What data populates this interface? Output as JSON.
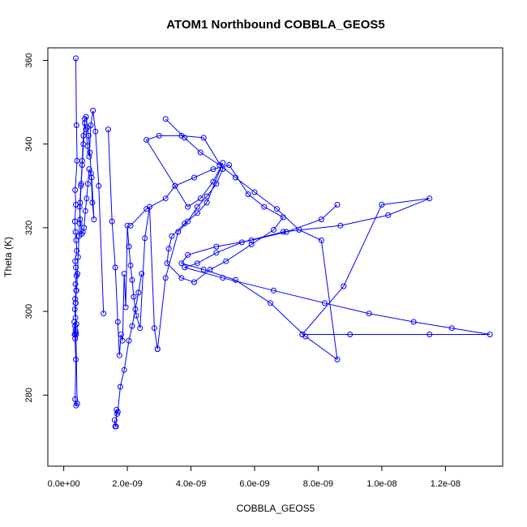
{
  "chart_data": {
    "type": "line",
    "title": "ATOM1 Northbound COBBLA_GEOS5",
    "xlabel": "COBBLA_GEOS5",
    "ylabel": "Theta (K)",
    "xlim": [
      -5e-10,
      1.38e-08
    ],
    "ylim": [
      263,
      363
    ],
    "x_ticks": [
      0,
      2e-09,
      4e-09,
      6e-09,
      8e-09,
      1e-08,
      1.2e-08
    ],
    "x_tick_labels": [
      "0.0e+00",
      "2.0e-09",
      "4.0e-09",
      "6.0e-09",
      "8.0e-09",
      "1.0e-08",
      "1.2e-08"
    ],
    "y_ticks": [
      280,
      300,
      320,
      340,
      360
    ],
    "y_tick_labels": [
      "280",
      "300",
      "320",
      "340",
      "360"
    ],
    "markers": "open-circle",
    "color": "#0000ff",
    "grid": false,
    "series": [
      {
        "x": [
          3.8e-10,
          4e-10,
          4.2e-10,
          3.6e-10,
          3.8e-10,
          3.5e-10,
          3.7e-10,
          3.9e-10,
          4.1e-10,
          3.6e-10,
          3.8e-10,
          4e-10,
          3.7e-10,
          3.9e-10,
          3.6e-10,
          3.8e-10,
          3.5e-10,
          3.7e-10,
          4e-10,
          3.6e-10,
          3.8e-10,
          3.4e-10,
          3.7e-10,
          3.9e-10,
          3.6e-10,
          3.3e-10,
          3.5e-10,
          3.8e-10,
          3.6e-10,
          3.9e-10,
          4.2e-10,
          3.7e-10,
          4e-10,
          4.3e-10,
          4.5e-10,
          4.8e-10,
          5e-10,
          5.2e-10,
          5.5e-10,
          5.8e-10,
          6.2e-10,
          6.6e-10,
          7e-10,
          7.4e-10,
          7.8e-10,
          8.2e-10,
          8.6e-10,
          9e-10,
          9.5e-10,
          8.8e-10,
          8e-10,
          7.6e-10,
          7.2e-10,
          6.8e-10,
          6.4e-10,
          6e-10,
          5.6e-10,
          5.2e-10,
          5e-10,
          5.4e-10,
          5.8e-10,
          6.2e-10,
          6.6e-10,
          7e-10,
          7.5e-10,
          8e-10,
          8.5e-10,
          9.2e-10,
          1e-09,
          1.1e-09,
          1.25e-09
        ],
        "y": [
          360.5,
          344.5,
          336.0,
          329.0,
          325.5,
          321.5,
          319.0,
          317.0,
          314.5,
          312.0,
          310.5,
          308.5,
          306.5,
          305.0,
          303.0,
          302.0,
          300.5,
          298.5,
          297.0,
          296.5,
          295.0,
          294.5,
          295.5,
          294.5,
          293.5,
          297.5,
          294.5,
          288.5,
          279.0,
          277.5,
          278.0,
          302.0,
          305.0,
          309.0,
          313.0,
          318.0,
          321.0,
          326.0,
          330.5,
          335.0,
          340.0,
          346.0,
          346.5,
          344.0,
          342.0,
          338.0,
          333.0,
          326.0,
          322.0,
          332.0,
          334.0,
          330.5,
          327.0,
          324.0,
          320.0,
          319.0,
          318.5,
          322.0,
          325.0,
          330.0,
          336.0,
          342.0,
          345.0,
          343.5,
          339.5,
          337.0,
          344.5,
          348.0,
          343.0,
          330.0,
          299.5
        ]
      },
      {
        "x": [
          1.4e-09,
          1.52e-09,
          1.62e-09,
          1.7e-09,
          1.75e-09,
          1.8e-09,
          1.85e-09,
          1.9e-09,
          1.95e-09,
          2e-09,
          2.05e-09,
          2.1e-09,
          2.15e-09,
          2.2e-09,
          2.28e-09,
          2.4e-09,
          2.55e-09,
          2.7e-09,
          2.85e-09,
          2.95e-09
        ],
        "y": [
          343.5,
          321.5,
          310.5,
          297.5,
          289.5,
          294.5,
          293.0,
          309.0,
          301.0,
          320.5,
          315.5,
          311.0,
          307.5,
          303.5,
          299.0,
          296.0,
          317.5,
          325.0,
          296.0,
          291.0
        ]
      },
      {
        "x": [
          1.6e-09,
          1.62e-09,
          1.64e-09,
          1.66e-09,
          1.68e-09,
          1.7e-09,
          1.78e-09,
          1.9e-09,
          2.05e-09,
          2.15e-09,
          2.25e-09,
          2.35e-09,
          2.45e-09
        ],
        "y": [
          274.0,
          272.5,
          272.5,
          276.5,
          275.5,
          276.0,
          282.0,
          286.0,
          293.0,
          296.5,
          300.5,
          304.5,
          309.0
        ]
      },
      {
        "x": [
          2.1e-09,
          2.6e-09,
          3.2e-09,
          3.5e-09,
          4.1e-09,
          4.7e-09,
          5.2e-09,
          5.8e-09,
          6.3e-09,
          6.9e-09,
          6.6e-09,
          5.9e-09,
          5.1e-09,
          4.6e-09,
          4.1e-09,
          3.7e-09,
          3.25e-09,
          3.3e-09,
          3.4e-09,
          3.8e-09,
          4.2e-09,
          4.5e-09,
          5e-09,
          4.7e-09,
          4.3e-09,
          3.9e-09,
          3.5e-09,
          2.6e-09,
          3e-09,
          3.7e-09,
          4.4e-09,
          5e-09,
          4.8e-09,
          4.5e-09,
          4.2e-09,
          3.9e-09,
          3.6e-09,
          3.2e-09,
          2.95e-09
        ],
        "y": [
          320.5,
          324.5,
          327.0,
          330.0,
          332.0,
          334.0,
          335.0,
          328.0,
          325.0,
          322.5,
          319.5,
          316.0,
          312.0,
          310.0,
          307.0,
          308.0,
          311.5,
          315.0,
          318.0,
          321.0,
          323.5,
          326.0,
          335.5,
          331.0,
          327.0,
          325.0,
          330.0,
          341.0,
          342.0,
          342.0,
          341.5,
          334.0,
          330.5,
          327.5,
          325.0,
          321.5,
          319.0,
          308.0,
          291.0
        ]
      },
      {
        "x": [
          3.2e-09,
          3.8e-09,
          4.3e-09,
          4.9e-09,
          5.4e-09,
          6e-09,
          6.7e-09,
          7.4e-09,
          8.1e-09,
          8.6e-09,
          7.6e-09,
          6.5e-09,
          5.4e-09,
          4.4e-09,
          3.7e-09,
          3.9e-09,
          4.8e-09,
          5.9e-09,
          7e-09,
          8.1e-09,
          8.6e-09
        ],
        "y": [
          346.0,
          341.5,
          338.0,
          335.0,
          332.0,
          328.5,
          324.5,
          319.5,
          317.0,
          288.5,
          294.0,
          302.0,
          307.5,
          310.0,
          311.5,
          313.5,
          315.5,
          317.0,
          319.0,
          322.0,
          325.5
        ]
      },
      {
        "x": [
          7.5e-09,
          8.8e-09,
          1e-08,
          1.15e-08,
          1.02e-08,
          8.7e-09,
          6.9e-09,
          5.6e-09,
          4.8e-09,
          4.2e-09,
          3.8e-09,
          5e-09,
          6.6e-09,
          8.2e-09,
          9.6e-09,
          1.1e-08,
          1.22e-08,
          1.34e-08,
          1.15e-08,
          9e-09,
          7.5e-09
        ],
        "y": [
          294.5,
          306.0,
          325.5,
          327.0,
          323.0,
          320.5,
          319.0,
          316.5,
          314.0,
          311.5,
          310.5,
          308.0,
          305.0,
          302.0,
          299.5,
          297.5,
          296.0,
          294.5,
          294.5,
          294.5,
          294.5
        ]
      }
    ]
  }
}
